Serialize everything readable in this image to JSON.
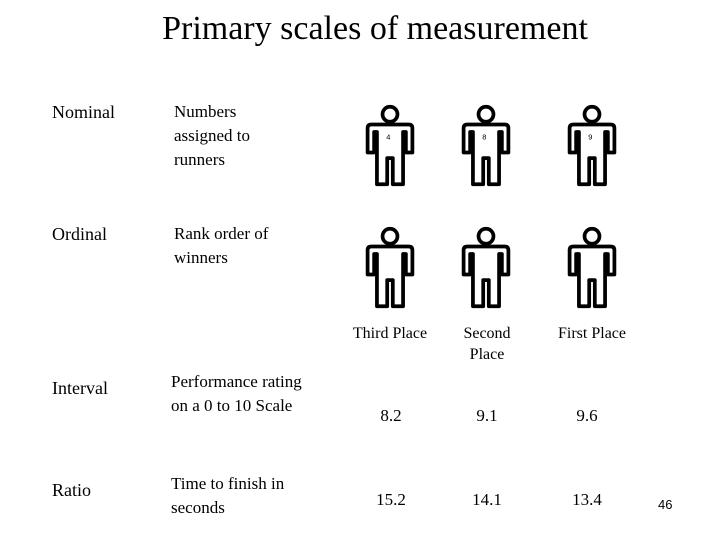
{
  "title": "Primary scales of measurement",
  "rows": {
    "nominal": {
      "scale": "Nominal",
      "description": "Numbers assigned to runners"
    },
    "ordinal": {
      "scale": "Ordinal",
      "description": "Rank order of winners"
    },
    "interval": {
      "scale": "Interval",
      "description": "Performance rating on a 0 to 10 Scale"
    },
    "ratio": {
      "scale": "Ratio",
      "description": "Time to finish in seconds"
    }
  },
  "runner_numbers": [
    "4",
    "8",
    "9"
  ],
  "places": [
    "Third Place",
    "Second Place",
    "First Place"
  ],
  "interval_values": [
    "8.2",
    "9.1",
    "9.6"
  ],
  "ratio_values": [
    "15.2",
    "14.1",
    "13.4"
  ],
  "page_number": "46",
  "icons": {
    "runner": "person-icon"
  }
}
